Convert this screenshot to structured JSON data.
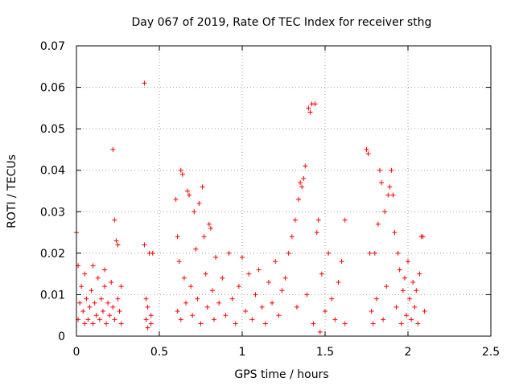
{
  "chart_data": {
    "type": "scatter",
    "title": "Day 067 of 2019, Rate Of TEC Index for receiver sthg",
    "xlabel": "GPS time / hours",
    "ylabel": "ROTI / TECUs",
    "xlim": [
      0,
      2.5
    ],
    "ylim": [
      0,
      0.07
    ],
    "xticks": [
      0,
      0.5,
      1,
      1.5,
      2,
      2.5
    ],
    "xtick_labels": [
      "0",
      "0.5",
      "1",
      "1.5",
      "2",
      "2.5"
    ],
    "yticks": [
      0,
      0.01,
      0.02,
      0.03,
      0.04,
      0.05,
      0.06,
      0.07
    ],
    "ytick_labels": [
      "0",
      "0.01",
      "0.02",
      "0.03",
      "0.04",
      "0.05",
      "0.06",
      "0.07"
    ],
    "grid": true,
    "marker": "+",
    "color": "#ff0000",
    "series": [
      {
        "name": "ROTI",
        "points": [
          [
            0.0,
            0.025
          ],
          [
            0.01,
            0.017
          ],
          [
            0.01,
            0.004
          ],
          [
            0.02,
            0.008
          ],
          [
            0.03,
            0.012
          ],
          [
            0.04,
            0.006
          ],
          [
            0.05,
            0.003
          ],
          [
            0.05,
            0.015
          ],
          [
            0.06,
            0.009
          ],
          [
            0.07,
            0.004
          ],
          [
            0.08,
            0.007
          ],
          [
            0.09,
            0.011
          ],
          [
            0.1,
            0.003
          ],
          [
            0.1,
            0.017
          ],
          [
            0.11,
            0.008
          ],
          [
            0.12,
            0.005
          ],
          [
            0.13,
            0.014
          ],
          [
            0.14,
            0.004
          ],
          [
            0.15,
            0.009
          ],
          [
            0.16,
            0.006
          ],
          [
            0.17,
            0.012
          ],
          [
            0.17,
            0.016
          ],
          [
            0.18,
            0.003
          ],
          [
            0.19,
            0.008
          ],
          [
            0.2,
            0.005
          ],
          [
            0.21,
            0.013
          ],
          [
            0.22,
            0.045
          ],
          [
            0.22,
            0.007
          ],
          [
            0.23,
            0.028
          ],
          [
            0.23,
            0.004
          ],
          [
            0.24,
            0.023
          ],
          [
            0.25,
            0.022
          ],
          [
            0.25,
            0.009
          ],
          [
            0.26,
            0.006
          ],
          [
            0.27,
            0.003
          ],
          [
            0.27,
            0.012
          ],
          [
            0.41,
            0.061
          ],
          [
            0.41,
            0.022
          ],
          [
            0.42,
            0.004
          ],
          [
            0.42,
            0.009
          ],
          [
            0.43,
            0.002
          ],
          [
            0.43,
            0.007
          ],
          [
            0.44,
            0.02
          ],
          [
            0.45,
            0.005
          ],
          [
            0.45,
            0.003
          ],
          [
            0.46,
            0.02
          ],
          [
            0.6,
            0.033
          ],
          [
            0.61,
            0.024
          ],
          [
            0.61,
            0.006
          ],
          [
            0.62,
            0.018
          ],
          [
            0.63,
            0.04
          ],
          [
            0.63,
            0.004
          ],
          [
            0.64,
            0.039
          ],
          [
            0.65,
            0.014
          ],
          [
            0.66,
            0.008
          ],
          [
            0.67,
            0.035
          ],
          [
            0.68,
            0.034
          ],
          [
            0.69,
            0.012
          ],
          [
            0.7,
            0.005
          ],
          [
            0.71,
            0.03
          ],
          [
            0.72,
            0.021
          ],
          [
            0.73,
            0.009
          ],
          [
            0.74,
            0.032
          ],
          [
            0.75,
            0.003
          ],
          [
            0.76,
            0.036
          ],
          [
            0.77,
            0.024
          ],
          [
            0.78,
            0.015
          ],
          [
            0.79,
            0.007
          ],
          [
            0.8,
            0.027
          ],
          [
            0.81,
            0.026
          ],
          [
            0.82,
            0.011
          ],
          [
            0.83,
            0.004
          ],
          [
            0.84,
            0.019
          ],
          [
            0.86,
            0.008
          ],
          [
            0.88,
            0.014
          ],
          [
            0.9,
            0.005
          ],
          [
            0.92,
            0.02
          ],
          [
            0.94,
            0.009
          ],
          [
            0.96,
            0.003
          ],
          [
            0.98,
            0.012
          ],
          [
            1.0,
            0.019
          ],
          [
            1.02,
            0.006
          ],
          [
            1.04,
            0.015
          ],
          [
            1.06,
            0.004
          ],
          [
            1.08,
            0.01
          ],
          [
            1.1,
            0.016
          ],
          [
            1.12,
            0.007
          ],
          [
            1.14,
            0.003
          ],
          [
            1.16,
            0.013
          ],
          [
            1.18,
            0.008
          ],
          [
            1.2,
            0.018
          ],
          [
            1.22,
            0.005
          ],
          [
            1.24,
            0.011
          ],
          [
            1.26,
            0.014
          ],
          [
            1.28,
            0.02
          ],
          [
            1.3,
            0.024
          ],
          [
            1.32,
            0.028
          ],
          [
            1.33,
            0.007
          ],
          [
            1.34,
            0.033
          ],
          [
            1.35,
            0.037
          ],
          [
            1.36,
            0.036
          ],
          [
            1.37,
            0.038
          ],
          [
            1.38,
            0.041
          ],
          [
            1.39,
            0.01
          ],
          [
            1.4,
            0.055
          ],
          [
            1.41,
            0.054
          ],
          [
            1.42,
            0.056
          ],
          [
            1.43,
            0.003
          ],
          [
            1.44,
            0.056
          ],
          [
            1.45,
            0.025
          ],
          [
            1.46,
            0.028
          ],
          [
            1.47,
            0.001
          ],
          [
            1.48,
            0.015
          ],
          [
            1.5,
            0.006
          ],
          [
            1.52,
            0.02
          ],
          [
            1.54,
            0.009
          ],
          [
            1.56,
            0.004
          ],
          [
            1.58,
            0.013
          ],
          [
            1.6,
            0.018
          ],
          [
            1.62,
            0.028
          ],
          [
            1.62,
            0.003
          ],
          [
            1.75,
            0.045
          ],
          [
            1.76,
            0.044
          ],
          [
            1.77,
            0.02
          ],
          [
            1.78,
            0.006
          ],
          [
            1.79,
            0.003
          ],
          [
            1.8,
            0.02
          ],
          [
            1.81,
            0.009
          ],
          [
            1.82,
            0.027
          ],
          [
            1.83,
            0.04
          ],
          [
            1.84,
            0.037
          ],
          [
            1.85,
            0.004
          ],
          [
            1.86,
            0.03
          ],
          [
            1.87,
            0.012
          ],
          [
            1.88,
            0.034
          ],
          [
            1.89,
            0.036
          ],
          [
            1.9,
            0.04
          ],
          [
            1.91,
            0.034
          ],
          [
            1.92,
            0.025
          ],
          [
            1.93,
            0.007
          ],
          [
            1.94,
            0.02
          ],
          [
            1.95,
            0.016
          ],
          [
            1.96,
            0.003
          ],
          [
            1.97,
            0.011
          ],
          [
            1.98,
            0.014
          ],
          [
            1.99,
            0.005
          ],
          [
            2.0,
            0.018
          ],
          [
            2.01,
            0.009
          ],
          [
            2.02,
            0.004
          ],
          [
            2.03,
            0.013
          ],
          [
            2.04,
            0.007
          ],
          [
            2.05,
            0.011
          ],
          [
            2.06,
            0.003
          ],
          [
            2.07,
            0.015
          ],
          [
            2.08,
            0.024
          ],
          [
            2.09,
            0.024
          ],
          [
            2.1,
            0.006
          ]
        ]
      }
    ]
  }
}
